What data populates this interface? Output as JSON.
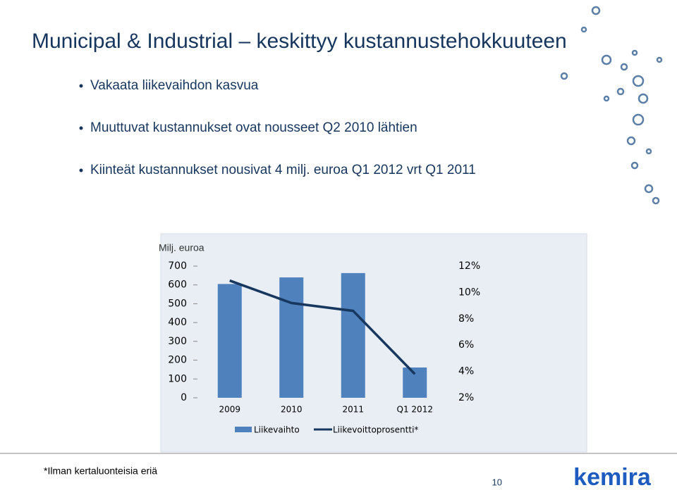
{
  "slide": {
    "title": "Municipal & Industrial – keskittyy kustannustehokkuuteen",
    "bullets": [
      "Vakaata liikevaihdon kasvua",
      "Muuttuvat kustannukset ovat nousseet Q2 2010 lähtien",
      "Kiinteät kustannukset nousivat 4 milj. euroa Q1 2012 vrt Q1 2011"
    ],
    "footnote": "*Ilman kertaluonteisia eriä",
    "page_number": "10",
    "logo": "kemira"
  },
  "chart_data": {
    "type": "combo",
    "ylabel": "Milj. euroa",
    "categories": [
      "2009",
      "2010",
      "2011",
      "Q1 2012"
    ],
    "series": [
      {
        "name": "Liikevaihto",
        "type": "bar",
        "color": "#4f81bd",
        "values": [
          605,
          640,
          663,
          161
        ]
      },
      {
        "name": "Liikevoittoprosentti*",
        "type": "line",
        "axis": "y2",
        "color": "#17375e",
        "values": [
          10.9,
          9.2,
          8.6,
          3.8
        ]
      }
    ],
    "ylim": [
      0,
      700
    ],
    "yticks": [
      0,
      100,
      200,
      300,
      400,
      500,
      600,
      700
    ],
    "y2lim": [
      2,
      12
    ],
    "y2ticks": [
      {
        "value": 2,
        "label": "2%"
      },
      {
        "value": 4,
        "label": "4%"
      },
      {
        "value": 6,
        "label": "6%"
      },
      {
        "value": 8,
        "label": "8%"
      },
      {
        "value": 10,
        "label": "10%"
      },
      {
        "value": 12,
        "label": "12%"
      }
    ],
    "grid": false,
    "legend": "bottom"
  }
}
